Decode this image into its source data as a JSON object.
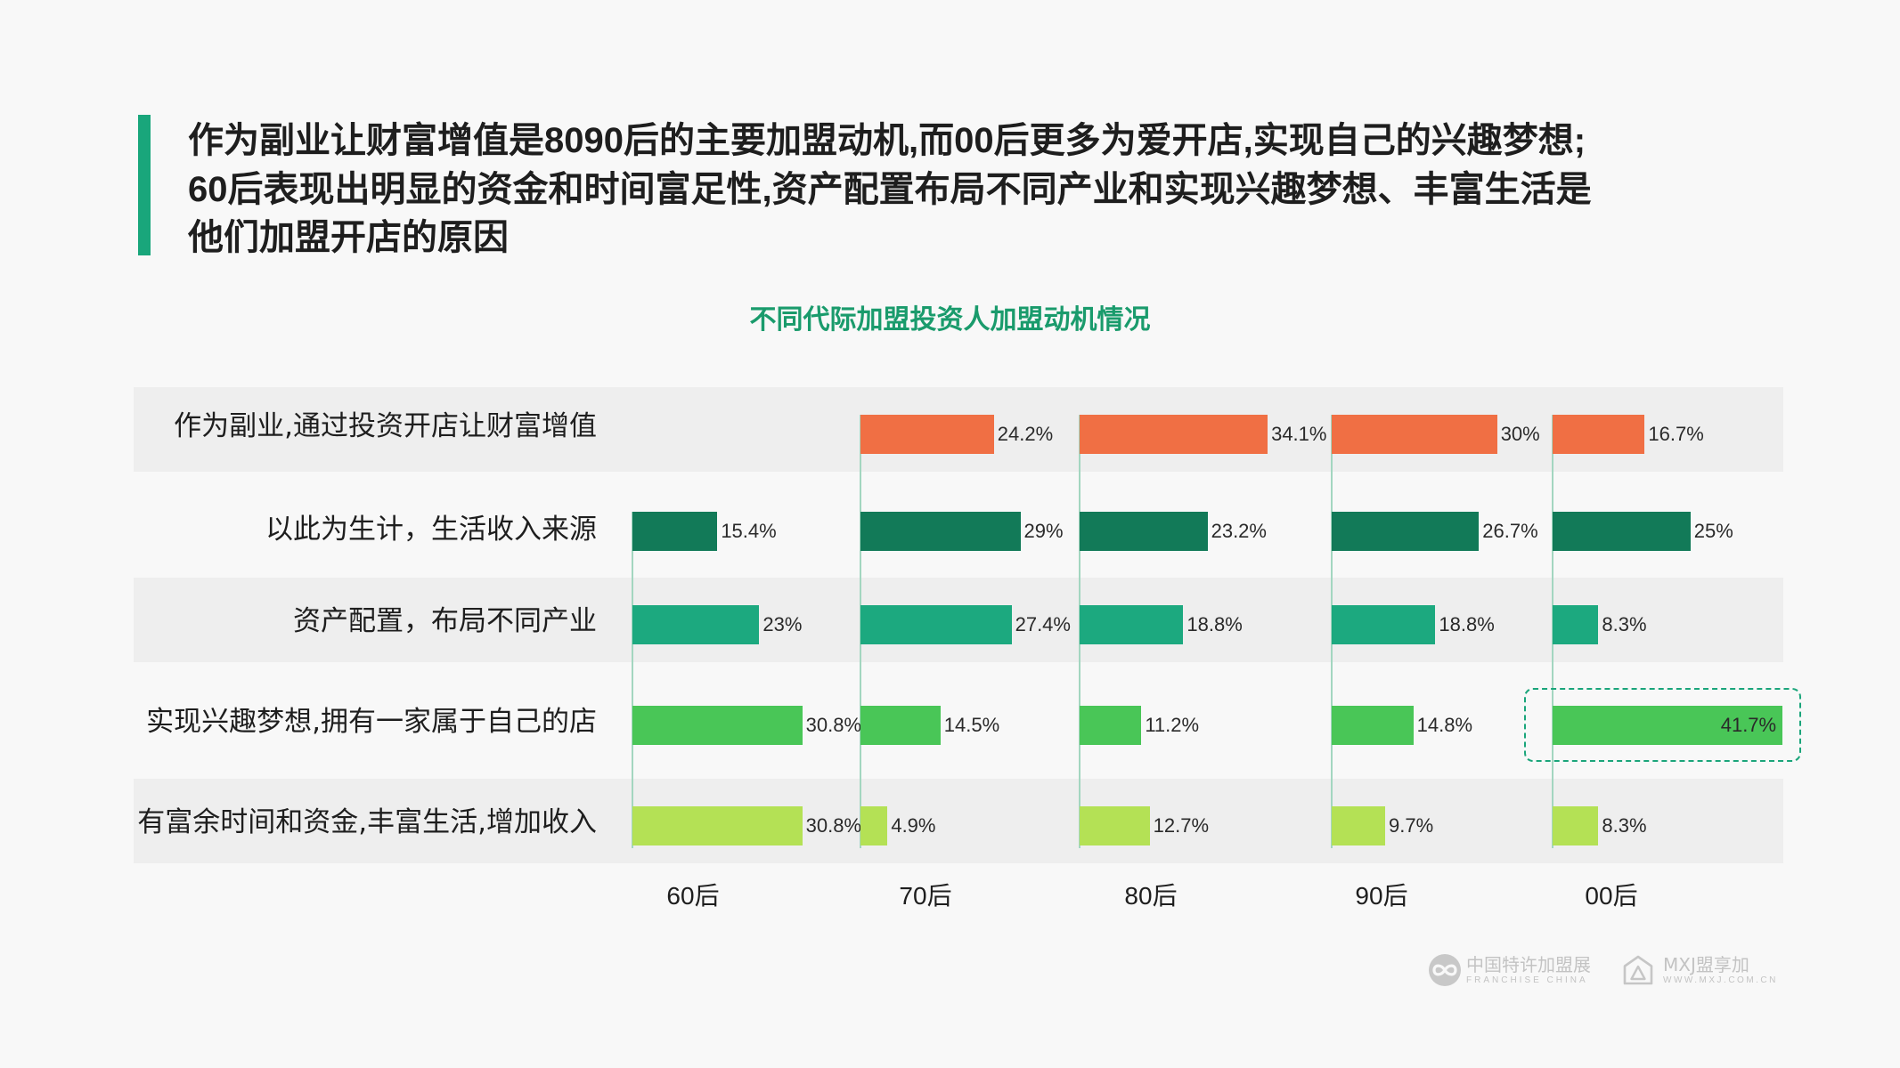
{
  "colors": {
    "page_background": "#f8f8f8",
    "band": "#eeeeee",
    "accent": "#19a67b",
    "chart_title": "#1a9b6c",
    "baseline": "#a3d6c0",
    "highlight_border": "#1aa57a",
    "logo": "#c3c3c3"
  },
  "headline": {
    "lines": [
      "作为副业让财富增值是8090后的主要加盟动机,而00后更多为爱开店,实现自己的兴趣梦想;",
      "60后表现出明显的资金和时间富足性,资产配置布局不同产业和实现兴趣梦想、丰富生活是",
      "他们加盟开店的原因"
    ]
  },
  "chart_data": {
    "type": "bar",
    "orientation": "horizontal",
    "title": "不同代际加盟投资人加盟动机情况",
    "unit": "%",
    "grid": false,
    "categories": [
      "作为副业,通过投资开店让财富增值",
      "以此为生计，生活收入来源",
      "资产配置，布局不同产业",
      "实现兴趣梦想,拥有一家属于自己的店",
      "有富余时间和资金,丰富生活,增加收入"
    ],
    "category_colors": [
      "#f06f44",
      "#127a58",
      "#1ca97f",
      "#49c657",
      "#b4e155"
    ],
    "series": [
      {
        "name": "60后",
        "values": [
          null,
          15.4,
          23,
          30.8,
          30.8
        ]
      },
      {
        "name": "70后",
        "values": [
          24.2,
          29,
          27.4,
          14.5,
          4.9
        ]
      },
      {
        "name": "80后",
        "values": [
          34.1,
          23.2,
          18.8,
          11.2,
          12.7
        ]
      },
      {
        "name": "90后",
        "values": [
          30,
          26.7,
          18.8,
          14.8,
          9.7
        ]
      },
      {
        "name": "00后",
        "values": [
          16.7,
          25,
          8.3,
          41.7,
          8.3
        ]
      }
    ],
    "highlight": {
      "series_index": 4,
      "category_index": 3
    }
  },
  "logos": [
    {
      "icon": "franchise-china-emblem-icon",
      "name": "中国特许加盟展",
      "subtitle": "FRANCHISE CHINA"
    },
    {
      "icon": "mxj-house-icon",
      "name": "MXJ盟享加",
      "subtitle": "WWW.MXJ.COM.CN"
    }
  ]
}
